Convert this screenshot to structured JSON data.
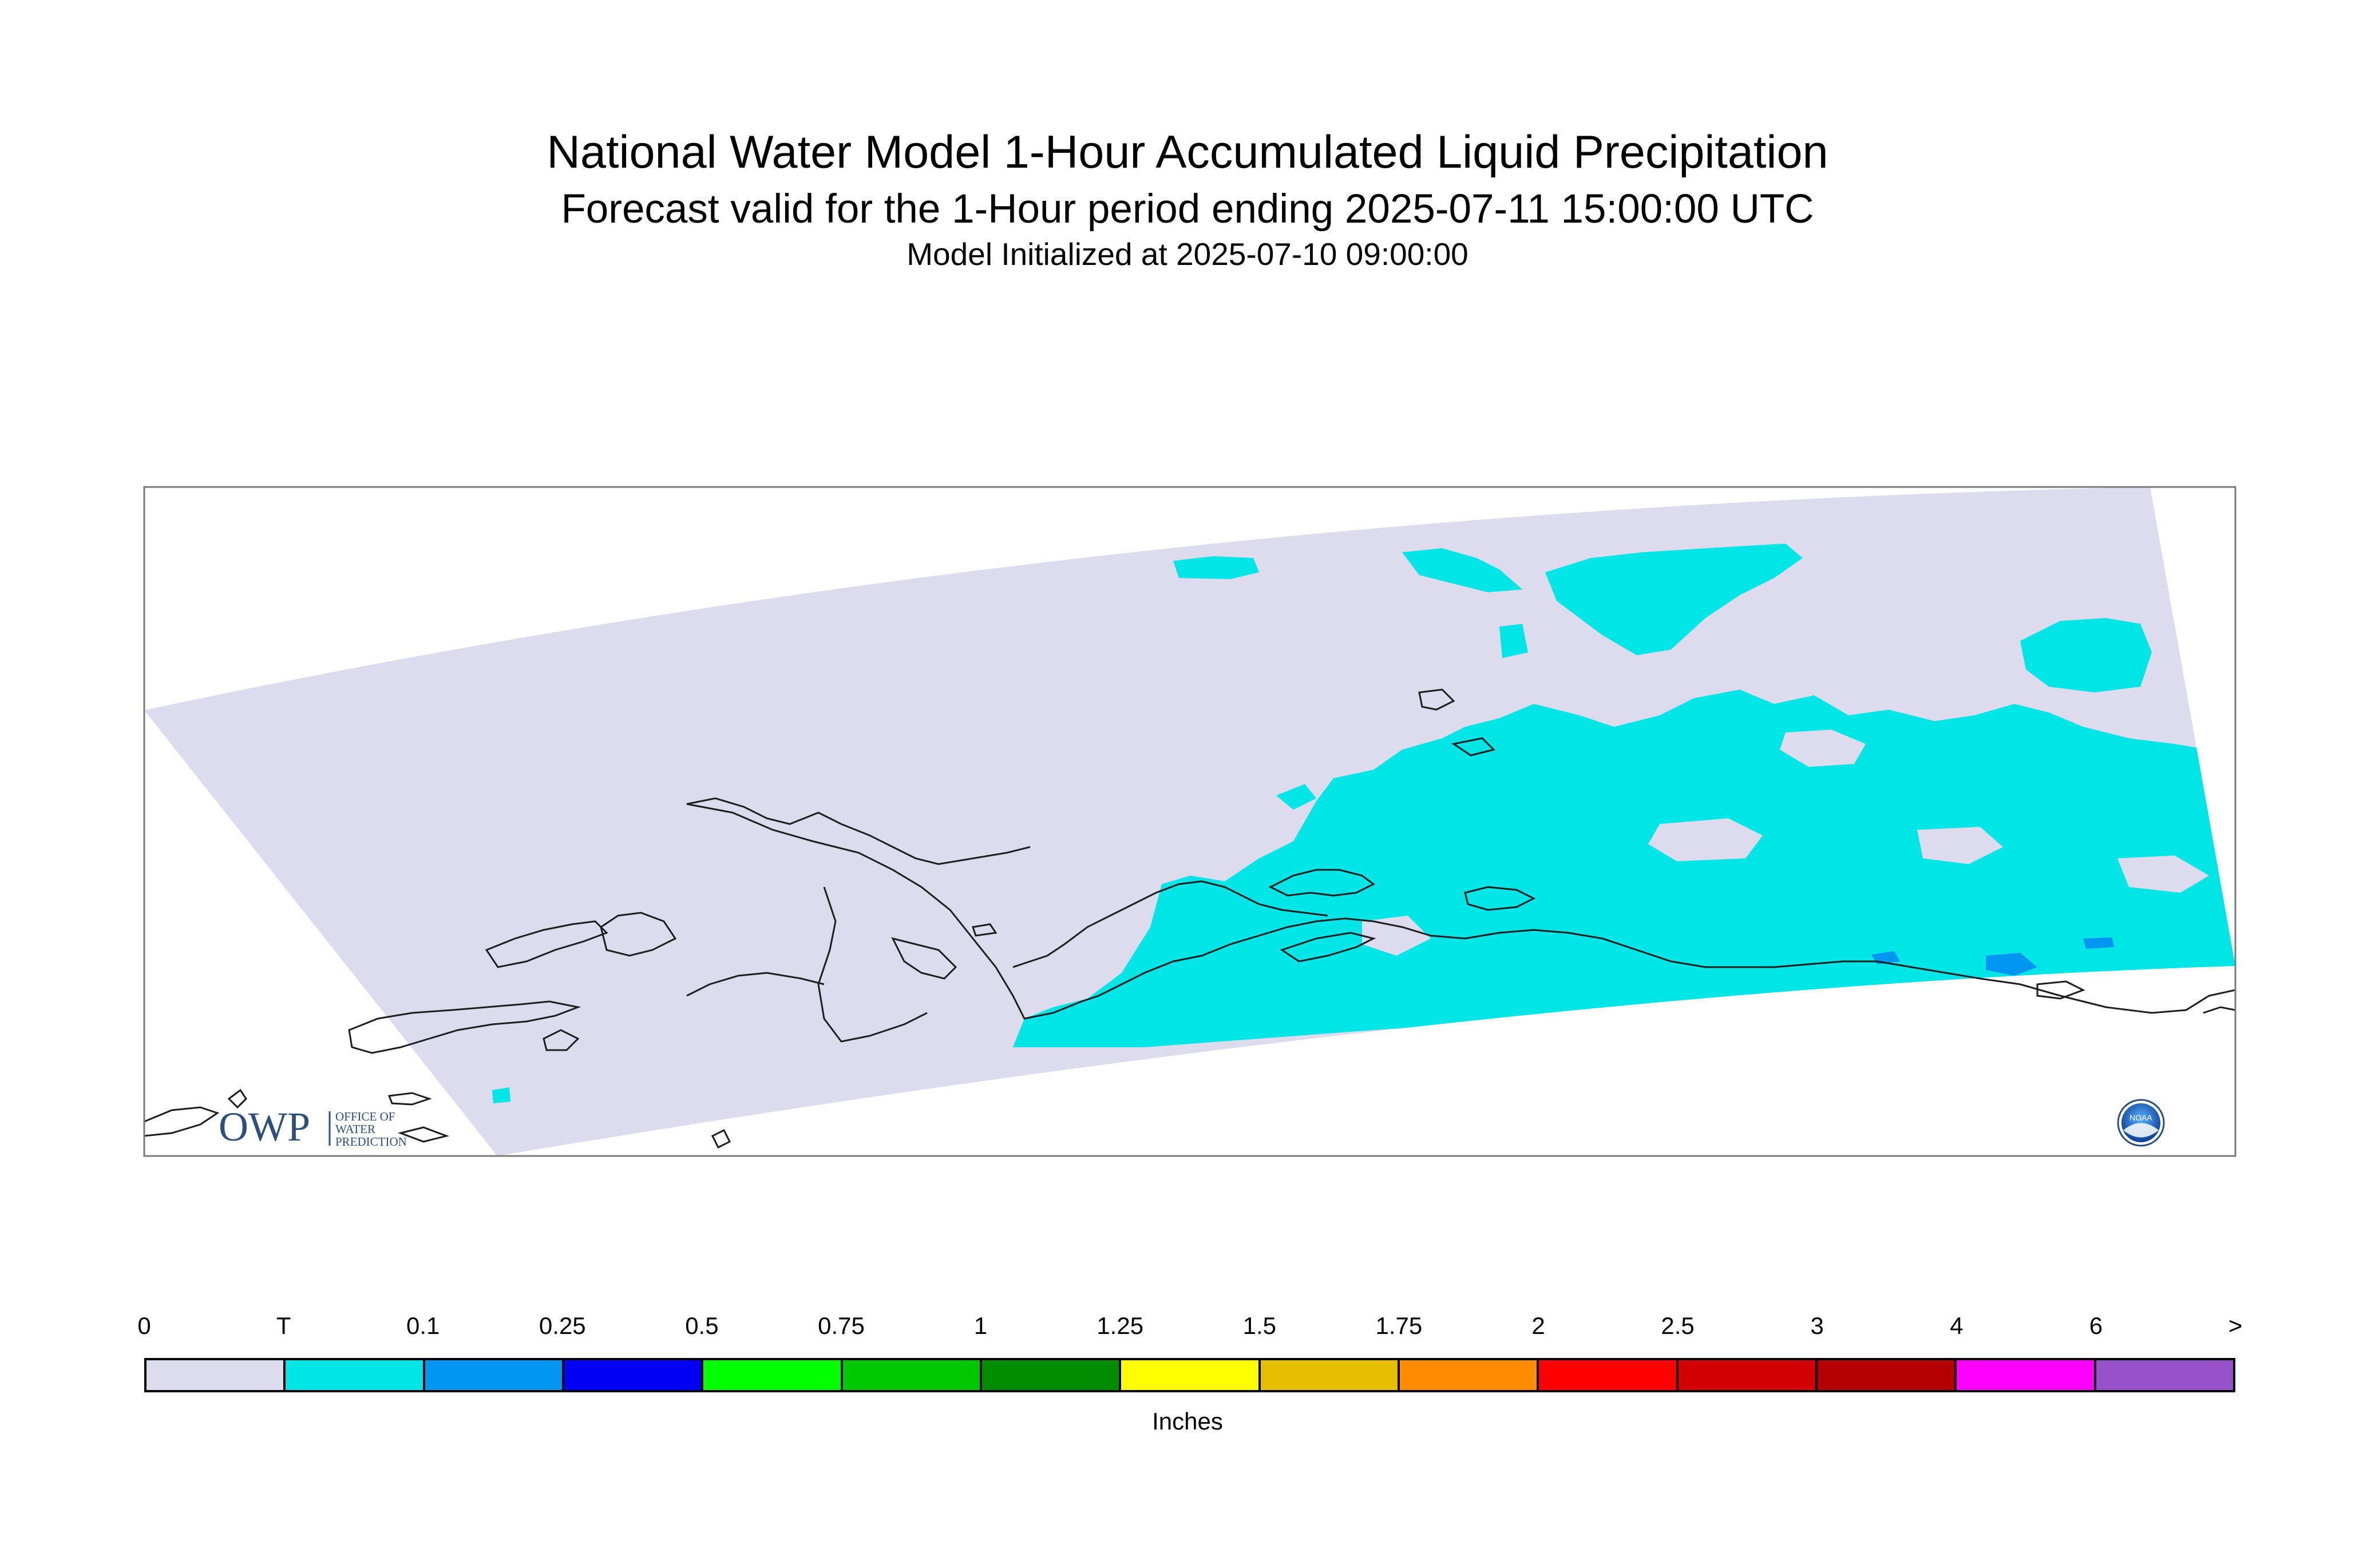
{
  "title": "National Water Model 1-Hour Accumulated Liquid Precipitation",
  "subtitle": "Forecast valid for the 1-Hour period ending 2025-07-11 15:00:00 UTC",
  "init_line": "Model Initialized at 2025-07-10 09:00:00",
  "colors": {
    "domain_fill": "#dcdcee",
    "trace_cyan": "#00e5e5",
    "light_blue": "#0096f0",
    "coastline": "#1e1e1e"
  },
  "legend": {
    "labels": [
      "0",
      "T",
      "0.1",
      "0.25",
      "0.5",
      "0.75",
      "1",
      "1.25",
      "1.5",
      "1.75",
      "2",
      "2.5",
      "3",
      "4",
      "6",
      ">"
    ],
    "colors": [
      "#dcdcee",
      "#00e5e5",
      "#0096f0",
      "#0000f5",
      "#00ff00",
      "#00c800",
      "#008c00",
      "#ffff00",
      "#e6be00",
      "#ff8c00",
      "#ff0000",
      "#d20000",
      "#b40000",
      "#ff00ff",
      "#9650c8"
    ],
    "units": "Inches"
  },
  "logos": {
    "owp_letters": "OWP",
    "owp_text": [
      "OFFICE OF",
      "WATER",
      "PREDICTION"
    ],
    "noaa_text": "NOAA"
  }
}
